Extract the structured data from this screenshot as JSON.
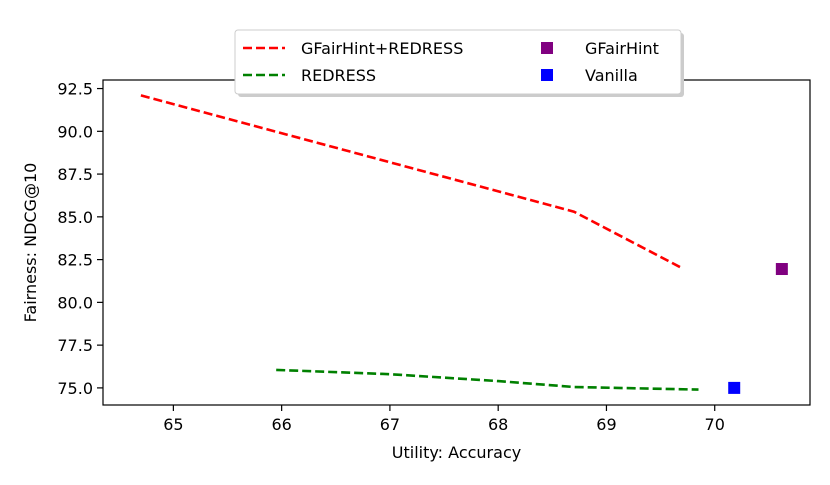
{
  "chart_data": {
    "type": "line",
    "xlabel": "Utility: Accuracy",
    "ylabel": "Fairness: NDCG@10",
    "xlim": [
      64.35,
      70.88
    ],
    "ylim": [
      74.0,
      93.0
    ],
    "x_ticks": [
      65,
      66,
      67,
      68,
      69,
      70
    ],
    "x_tick_labels": [
      "65",
      "66",
      "67",
      "68",
      "69",
      "70"
    ],
    "y_ticks": [
      75.0,
      77.5,
      80.0,
      82.5,
      85.0,
      87.5,
      90.0,
      92.5
    ],
    "y_tick_labels": [
      "75.0",
      "77.5",
      "80.0",
      "82.5",
      "85.0",
      "87.5",
      "90.0",
      "92.5"
    ],
    "grid": false,
    "legend_placement": "top-center, above axes",
    "series": [
      {
        "name": "GFairHint+REDRESS",
        "kind": "dashed-line",
        "color": "#ff0000",
        "x": [
          64.7,
          68.7,
          69.7
        ],
        "y": [
          92.1,
          85.3,
          82.0
        ]
      },
      {
        "name": "REDRESS",
        "kind": "dashed-line",
        "color": "#008000",
        "x": [
          65.95,
          67.0,
          68.0,
          68.7,
          69.85
        ],
        "y": [
          76.05,
          75.8,
          75.4,
          75.05,
          74.9
        ]
      },
      {
        "name": "GFairHint",
        "kind": "square-marker",
        "color": "#800080",
        "x": [
          70.62
        ],
        "y": [
          81.95
        ]
      },
      {
        "name": "Vanilla",
        "kind": "square-marker",
        "color": "#0000ff",
        "x": [
          70.18
        ],
        "y": [
          75.0
        ]
      }
    ]
  }
}
